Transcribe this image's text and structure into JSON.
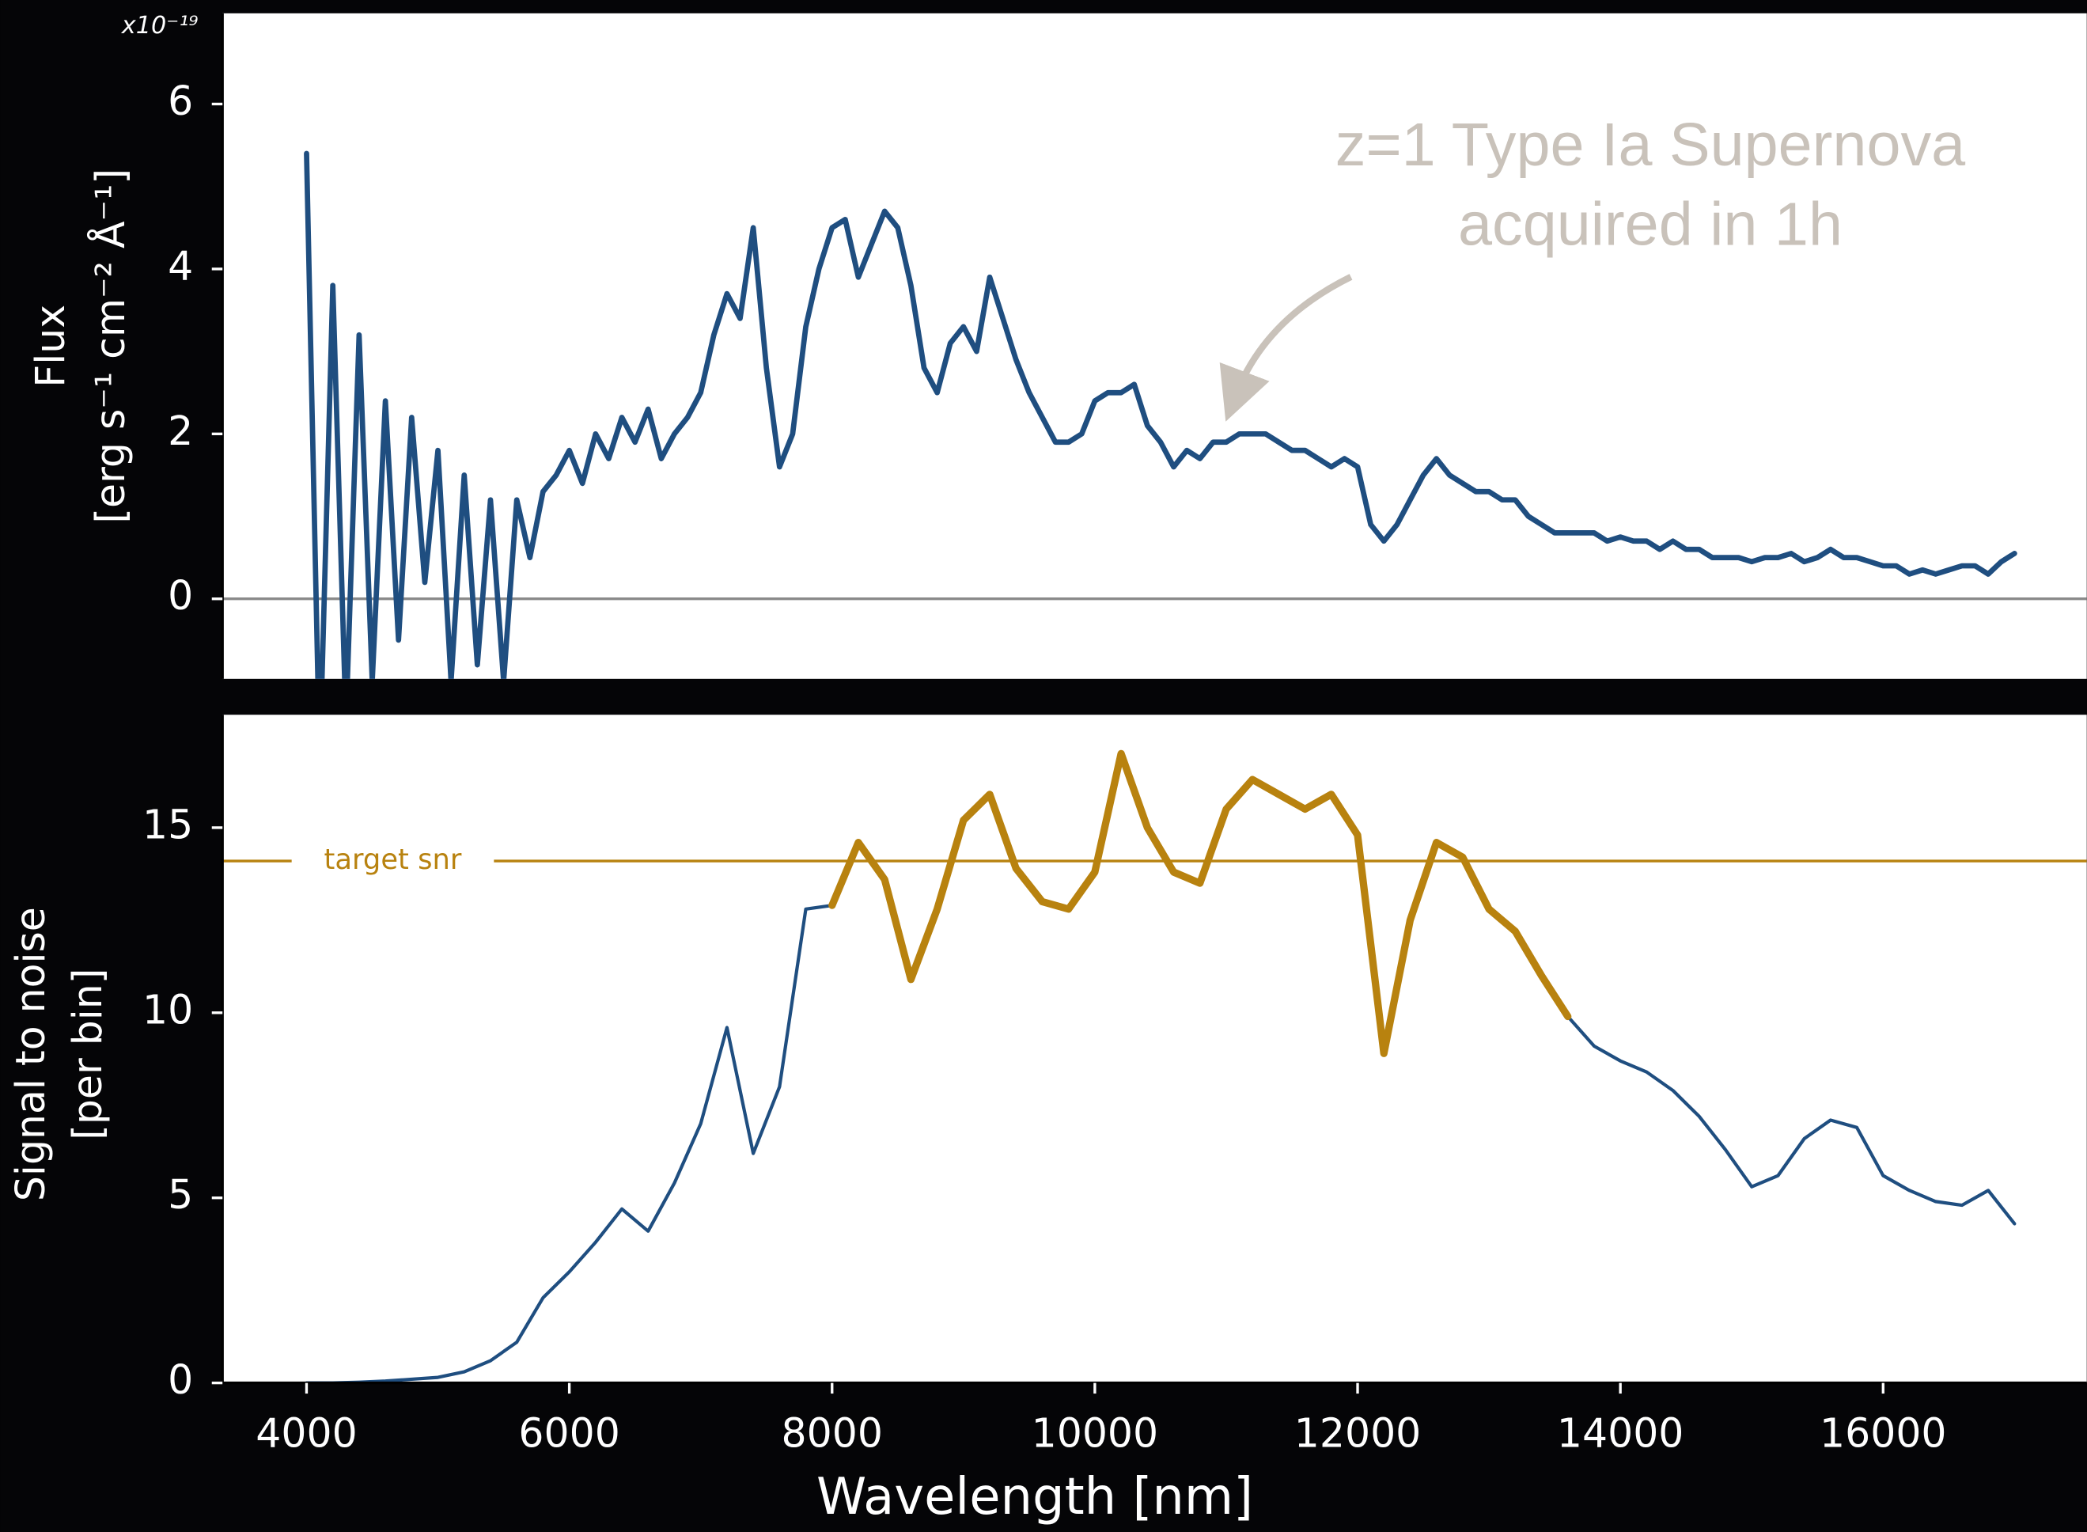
{
  "chart_data": [
    {
      "type": "line",
      "ylabel": [
        "Flux",
        "[erg s⁻¹ cm⁻² Å⁻¹]"
      ],
      "y_scale_label": "x10⁻¹⁹",
      "annotation": [
        "z=1 Type Ia Supernova",
        "acquired in 1h"
      ],
      "xlim": [
        3360,
        17550
      ],
      "ylim": [
        -0.97,
        7.1
      ],
      "yticks": [
        0,
        2,
        4,
        6
      ],
      "hlines": [
        {
          "value": 0,
          "color": "#8a8a8a"
        }
      ],
      "x": [
        4000,
        4100,
        4200,
        4300,
        4400,
        4500,
        4600,
        4700,
        4800,
        4900,
        5000,
        5100,
        5200,
        5300,
        5400,
        5500,
        5600,
        5700,
        5800,
        5900,
        6000,
        6100,
        6200,
        6300,
        6400,
        6500,
        6600,
        6700,
        6800,
        6900,
        7000,
        7100,
        7200,
        7300,
        7400,
        7500,
        7600,
        7700,
        7800,
        7900,
        8000,
        8100,
        8200,
        8300,
        8400,
        8500,
        8600,
        8700,
        8800,
        8900,
        9000,
        9100,
        9200,
        9300,
        9400,
        9500,
        9600,
        9700,
        9800,
        9900,
        10000,
        10100,
        10200,
        10300,
        10400,
        10500,
        10600,
        10700,
        10800,
        10900,
        11000,
        11100,
        11200,
        11300,
        11400,
        11500,
        11600,
        11700,
        11800,
        11900,
        12000,
        12100,
        12200,
        12300,
        12400,
        12500,
        12600,
        12700,
        12800,
        12900,
        13000,
        13100,
        13200,
        13300,
        13400,
        13500,
        13600,
        13700,
        13800,
        13900,
        14000,
        14100,
        14200,
        14300,
        14400,
        14500,
        14600,
        14700,
        14800,
        14900,
        15000,
        15100,
        15200,
        15300,
        15400,
        15500,
        15600,
        15700,
        15800,
        15900,
        16000,
        16100,
        16200,
        16300,
        16400,
        16500,
        16600,
        16700,
        16800,
        16900,
        17000
      ],
      "series": [
        {
          "color": "#1f4e80",
          "line_width": 4,
          "values": [
            5.4,
            -2,
            3.8,
            -1.5,
            3.2,
            -1.0,
            2.4,
            -0.5,
            2.2,
            0.2,
            1.8,
            -1,
            1.5,
            -0.8,
            1.2,
            -1,
            1.2,
            0.5,
            1.3,
            1.5,
            1.8,
            1.4,
            2.0,
            1.7,
            2.2,
            1.9,
            2.3,
            1.7,
            2.0,
            2.2,
            2.5,
            3.2,
            3.7,
            3.4,
            4.5,
            2.8,
            1.6,
            2.0,
            3.3,
            4.0,
            4.5,
            4.6,
            3.9,
            4.3,
            4.7,
            4.5,
            3.8,
            2.8,
            2.5,
            3.1,
            3.3,
            3.0,
            3.9,
            3.4,
            2.9,
            2.5,
            2.2,
            1.9,
            1.9,
            2.0,
            2.4,
            2.5,
            2.5,
            2.6,
            2.1,
            1.9,
            1.6,
            1.8,
            1.7,
            1.9,
            1.9,
            2.0,
            2.0,
            2.0,
            1.9,
            1.8,
            1.8,
            1.7,
            1.6,
            1.7,
            1.6,
            0.9,
            0.7,
            0.9,
            1.2,
            1.5,
            1.7,
            1.5,
            1.4,
            1.3,
            1.3,
            1.2,
            1.2,
            1.0,
            0.9,
            0.8,
            0.8,
            0.8,
            0.8,
            0.7,
            0.75,
            0.7,
            0.7,
            0.6,
            0.7,
            0.6,
            0.6,
            0.5,
            0.5,
            0.5,
            0.45,
            0.5,
            0.5,
            0.55,
            0.45,
            0.5,
            0.6,
            0.5,
            0.5,
            0.45,
            0.4,
            0.4,
            0.3,
            0.35,
            0.3,
            0.35,
            0.4,
            0.4,
            0.3,
            0.45,
            0.55
          ]
        }
      ]
    },
    {
      "type": "line",
      "ylabel": [
        "Signal to noise",
        "[per bin]"
      ],
      "xlabel": "Wavelength [nm]",
      "xlim": [
        3360,
        17550
      ],
      "ylim": [
        0,
        18.05
      ],
      "xticks": [
        4000,
        6000,
        8000,
        10000,
        12000,
        14000,
        16000
      ],
      "yticks": [
        0,
        5,
        10,
        15
      ],
      "hlines": [
        {
          "value": 14.1,
          "label": "target snr",
          "color": "#b8820f"
        }
      ],
      "x": [
        4000,
        4200,
        4400,
        4600,
        4800,
        5000,
        5200,
        5400,
        5600,
        5800,
        6000,
        6200,
        6400,
        6600,
        6800,
        7000,
        7200,
        7400,
        7600,
        7800,
        8000,
        8200,
        8400,
        8600,
        8800,
        9000,
        9200,
        9400,
        9600,
        9800,
        10000,
        10200,
        10400,
        10600,
        10800,
        11000,
        11200,
        11400,
        11600,
        11800,
        12000,
        12200,
        12400,
        12600,
        12800,
        13000,
        13200,
        13400,
        13600,
        13800,
        14000,
        14200,
        14400,
        14600,
        14800,
        15000,
        15200,
        15400,
        15600,
        15800,
        16000,
        16200,
        16400,
        16600,
        16800,
        17000
      ],
      "series": [
        {
          "color": "#1f4e80",
          "line_width": 2.5,
          "values": [
            0,
            0,
            0.02,
            0.05,
            0.1,
            0.15,
            0.3,
            0.6,
            1.1,
            2.3,
            3.0,
            3.8,
            4.7,
            4.1,
            5.4,
            7.0,
            9.6,
            6.2,
            8.0,
            12.8,
            12.9,
            14.6,
            13.6,
            10.9,
            12.8,
            15.2,
            15.9,
            13.9,
            13.0,
            12.8,
            13.8,
            17.0,
            15.0,
            13.8,
            13.5,
            15.5,
            16.3,
            15.9,
            15.5,
            15.9,
            14.8,
            8.9,
            12.5,
            14.6,
            14.2,
            12.8,
            12.2,
            11.0,
            9.9,
            9.1,
            8.7,
            8.4,
            7.9,
            7.2,
            6.3,
            5.3,
            5.6,
            6.6,
            7.1,
            6.9,
            5.6,
            5.2,
            4.9,
            4.8,
            5.2,
            4.3
          ]
        },
        {
          "color": "#b8820f",
          "line_width": 5.5,
          "values": [
            null,
            null,
            null,
            null,
            null,
            null,
            null,
            null,
            null,
            null,
            null,
            null,
            null,
            null,
            null,
            null,
            null,
            null,
            null,
            null,
            12.9,
            14.6,
            13.6,
            10.9,
            12.8,
            15.2,
            15.9,
            13.9,
            13.0,
            12.8,
            13.8,
            17.0,
            15.0,
            13.8,
            13.5,
            15.5,
            16.3,
            15.9,
            15.5,
            15.9,
            14.8,
            8.9,
            12.5,
            14.6,
            14.2,
            12.8,
            12.2,
            11.0,
            9.9,
            null,
            null,
            null,
            null,
            null,
            null,
            null,
            null,
            null,
            null,
            null,
            null,
            null,
            null,
            null,
            null,
            null
          ]
        }
      ]
    }
  ]
}
